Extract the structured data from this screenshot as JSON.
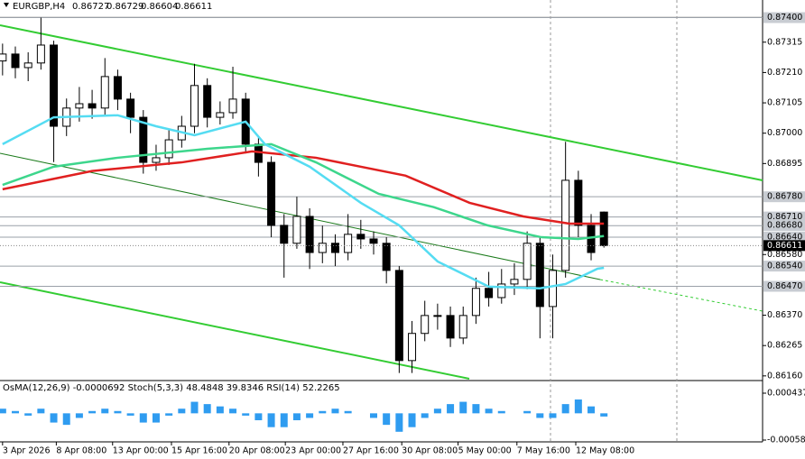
{
  "chart_data": {
    "type": "candlestick",
    "title": "EURGBP,H4",
    "header_values": [
      0.86727,
      0.86729,
      0.86604,
      0.86611
    ],
    "ohlc": [
      [
        0.8725,
        0.8731,
        0.872,
        0.87274
      ],
      [
        0.87274,
        0.873,
        0.8719,
        0.87227
      ],
      [
        0.87227,
        0.8728,
        0.8718,
        0.87243
      ],
      [
        0.87243,
        0.874,
        0.8722,
        0.87305
      ],
      [
        0.87305,
        0.8732,
        0.869,
        0.87024
      ],
      [
        0.87024,
        0.8712,
        0.8699,
        0.87087
      ],
      [
        0.87087,
        0.8716,
        0.8704,
        0.87102
      ],
      [
        0.87102,
        0.8715,
        0.8705,
        0.87087
      ],
      [
        0.87087,
        0.8726,
        0.8706,
        0.87196
      ],
      [
        0.87196,
        0.8722,
        0.8708,
        0.87118
      ],
      [
        0.87118,
        0.8714,
        0.87,
        0.87055
      ],
      [
        0.87055,
        0.8708,
        0.8686,
        0.86899
      ],
      [
        0.86899,
        0.8696,
        0.8687,
        0.86915
      ],
      [
        0.86915,
        0.8701,
        0.8689,
        0.86977
      ],
      [
        0.86977,
        0.8706,
        0.8695,
        0.87024
      ],
      [
        0.87024,
        0.8724,
        0.87,
        0.87165
      ],
      [
        0.87165,
        0.8719,
        0.8702,
        0.87055
      ],
      [
        0.87055,
        0.8711,
        0.8703,
        0.87071
      ],
      [
        0.87071,
        0.8723,
        0.8705,
        0.87118
      ],
      [
        0.87118,
        0.8714,
        0.8693,
        0.86962
      ],
      [
        0.86962,
        0.8699,
        0.8685,
        0.86899
      ],
      [
        0.86899,
        0.8692,
        0.8664,
        0.86681
      ],
      [
        0.86681,
        0.8672,
        0.865,
        0.86619
      ],
      [
        0.86619,
        0.8678,
        0.866,
        0.86712
      ],
      [
        0.86712,
        0.8674,
        0.8653,
        0.86587
      ],
      [
        0.86587,
        0.8668,
        0.8655,
        0.86619
      ],
      [
        0.86619,
        0.8665,
        0.8654,
        0.86587
      ],
      [
        0.86587,
        0.8672,
        0.8656,
        0.8665
      ],
      [
        0.8665,
        0.867,
        0.866,
        0.86634
      ],
      [
        0.86634,
        0.8666,
        0.8658,
        0.86619
      ],
      [
        0.86619,
        0.8664,
        0.8648,
        0.86525
      ],
      [
        0.86525,
        0.8654,
        0.8617,
        0.86213
      ],
      [
        0.86213,
        0.8635,
        0.8617,
        0.86307
      ],
      [
        0.86307,
        0.8642,
        0.8628,
        0.86369
      ],
      [
        0.86369,
        0.8641,
        0.8632,
        0.86369
      ],
      [
        0.86369,
        0.864,
        0.8626,
        0.86291
      ],
      [
        0.86291,
        0.864,
        0.8627,
        0.86369
      ],
      [
        0.86369,
        0.865,
        0.8634,
        0.86463
      ],
      [
        0.86463,
        0.8652,
        0.864,
        0.86431
      ],
      [
        0.86431,
        0.8653,
        0.8641,
        0.86478
      ],
      [
        0.86478,
        0.8655,
        0.8644,
        0.86494
      ],
      [
        0.86494,
        0.8666,
        0.8646,
        0.86619
      ],
      [
        0.86619,
        0.8664,
        0.8629,
        0.864
      ],
      [
        0.864,
        0.8658,
        0.8629,
        0.86525
      ],
      [
        0.86525,
        0.8697,
        0.865,
        0.86837
      ],
      [
        0.86837,
        0.8687,
        0.8664,
        0.86681
      ],
      [
        0.86681,
        0.8672,
        0.8656,
        0.86587
      ],
      [
        0.86727,
        0.86729,
        0.86604,
        0.86611
      ]
    ],
    "candle_up_color": "#ffffff",
    "candle_down_color": "#000000",
    "series": [
      {
        "color": "#e02020",
        "x": [
          0,
          7,
          14,
          19.5,
          24.5,
          31.5,
          36.5,
          40.7,
          44.3,
          47
        ],
        "values": [
          0.86806,
          0.86869,
          0.86899,
          0.86937,
          0.86915,
          0.86853,
          0.86759,
          0.86712,
          0.86687,
          0.86687
        ]
      },
      {
        "color": "#3dd68c",
        "x": [
          0,
          4,
          9,
          16,
          21,
          24.5,
          29.4,
          33.7,
          37.9,
          42.1,
          45,
          47
        ],
        "values": [
          0.86821,
          0.86884,
          0.86915,
          0.86946,
          0.86962,
          0.86899,
          0.8679,
          0.86744,
          0.86681,
          0.8664,
          0.86634,
          0.86644
        ]
      },
      {
        "color": "#55dcf2",
        "x": [
          0,
          4,
          9,
          12,
          15,
          19,
          20.5,
          24,
          28,
          31,
          34,
          38,
          42,
          44,
          46.5,
          47
        ],
        "values": [
          0.86962,
          0.87055,
          0.87062,
          0.87024,
          0.86993,
          0.8704,
          0.86962,
          0.86884,
          0.86759,
          0.86681,
          0.86556,
          0.86469,
          0.86463,
          0.86478,
          0.86531,
          0.86534
        ]
      }
    ],
    "xlim": [
      -0.2,
      59.4
    ],
    "ylim": [
      0.86147,
      0.87436
    ],
    "yticks": [
      0.87315,
      {
        "value": 0.8721,
        "label": "0.87210"
      },
      0.87105,
      {
        "value": 0.87,
        "label": "0.87000"
      },
      0.86895,
      {
        "value": 0.8658,
        "label": "0.86580"
      },
      {
        "value": 0.8637,
        "label": "0.86370"
      },
      0.86265,
      {
        "value": 0.8616,
        "label": "0.86160"
      }
    ],
    "levels": [
      {
        "value": 0.874,
        "label": "0.87400"
      },
      {
        "value": 0.8678,
        "label": "0.86780"
      },
      {
        "value": 0.8671,
        "label": "0.86710"
      },
      {
        "value": 0.8668,
        "label": "0.86680"
      },
      {
        "value": 0.8664,
        "label": "0.86640"
      },
      {
        "value": 0.8654,
        "label": "0.86540"
      },
      {
        "value": 0.8647,
        "label": "0.86470"
      }
    ],
    "xticks": [
      {
        "value": 0,
        "label": "3 Apr 2026"
      },
      {
        "value": 4.2,
        "label": "8 Apr 08:00"
      },
      {
        "value": 8.6,
        "label": "13 Apr 00:00"
      },
      {
        "value": 13.2,
        "label": "15 Apr 16:00"
      },
      {
        "value": 17.7,
        "label": "20 Apr 08:00"
      },
      {
        "value": 22.1,
        "label": "23 Apr 00:00"
      },
      {
        "value": 26.6,
        "label": "27 Apr 16:00"
      },
      {
        "value": 31.2,
        "label": "30 Apr 08:00"
      },
      {
        "value": 35.6,
        "label": "5 May 00:00"
      },
      {
        "value": 40.2,
        "label": "7 May 16:00"
      },
      {
        "value": 44.8,
        "label": "12 May 08:00"
      }
    ],
    "oscillator": {
      "title": "OsMA(12,26,9) -0.0000692  Stoch(5,3,3) 48.4848 39.8346  RSI(14) 52.2265",
      "color": "#2f9cf0",
      "ylim": [
        -0.00058,
        0.000437
      ],
      "yticks": [
        0.000437,
        {
          "value": -0.00058,
          "label": "-0.000580"
        }
      ],
      "values": [
        0.0001,
        5e-05,
        -5e-05,
        0.0001,
        -0.0002,
        -0.00025,
        -0.0001,
        5e-05,
        0.0001,
        5e-05,
        -5e-05,
        -0.0002,
        -0.0002,
        -5e-05,
        0.0001,
        0.00025,
        0.0002,
        0.00015,
        0.0001,
        -5e-05,
        -0.00015,
        -0.0003,
        -0.0003,
        -0.00015,
        -0.0001,
        5e-05,
        0.0001,
        5e-05,
        0,
        -0.0001,
        -0.00025,
        -0.0004,
        -0.0003,
        -0.0001,
        0.0001,
        0.0002,
        0.00025,
        0.0002,
        0.0001,
        5e-05,
        0,
        5e-05,
        -0.0001,
        -0.0001,
        0.0002,
        0.0003,
        0.00015,
        -6.92e-05
      ]
    }
  }
}
